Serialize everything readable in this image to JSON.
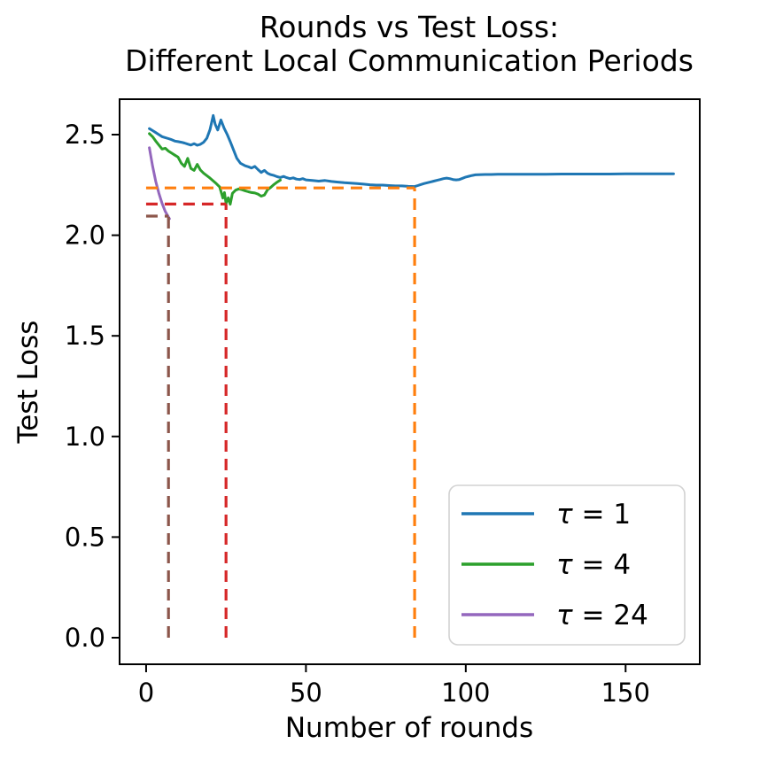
{
  "chart_data": {
    "type": "line",
    "title_lines": [
      "Rounds vs Test Loss:",
      " Different Local Communication Periods"
    ],
    "xlabel": "Number of rounds",
    "ylabel": "Test Loss",
    "xlim": [
      -8.3,
      173.2
    ],
    "ylim": [
      -0.132,
      2.676
    ],
    "xticks": {
      "values": [
        0,
        50,
        100,
        150
      ],
      "labels": [
        "0",
        "50",
        "100",
        "150"
      ]
    },
    "yticks": {
      "values": [
        0.0,
        0.5,
        1.0,
        1.5,
        2.0,
        2.5
      ],
      "labels": [
        "0.0",
        "0.5",
        "1.0",
        "1.5",
        "2.0",
        "2.5"
      ]
    },
    "grid": false,
    "legend_position": "lower right",
    "series": [
      {
        "name": "τ = 1",
        "color": "#1f77b4",
        "style": "solid",
        "points": [
          [
            1,
            2.53
          ],
          [
            2,
            2.52
          ],
          [
            3,
            2.51
          ],
          [
            4,
            2.5
          ],
          [
            5,
            2.49
          ],
          [
            6,
            2.485
          ],
          [
            7,
            2.48
          ],
          [
            8,
            2.475
          ],
          [
            9,
            2.468
          ],
          [
            10,
            2.465
          ],
          [
            11,
            2.462
          ],
          [
            12,
            2.458
          ],
          [
            13,
            2.453
          ],
          [
            14,
            2.448
          ],
          [
            15,
            2.455
          ],
          [
            16,
            2.447
          ],
          [
            17,
            2.452
          ],
          [
            18,
            2.462
          ],
          [
            19,
            2.482
          ],
          [
            20,
            2.525
          ],
          [
            21,
            2.595
          ],
          [
            21.6,
            2.552
          ],
          [
            22.4,
            2.523
          ],
          [
            23.4,
            2.573
          ],
          [
            24.4,
            2.532
          ],
          [
            25.4,
            2.5
          ],
          [
            26.4,
            2.462
          ],
          [
            27.4,
            2.422
          ],
          [
            28.4,
            2.382
          ],
          [
            29.5,
            2.358
          ],
          [
            31,
            2.345
          ],
          [
            32,
            2.34
          ],
          [
            33,
            2.334
          ],
          [
            34,
            2.342
          ],
          [
            35,
            2.326
          ],
          [
            36,
            2.312
          ],
          [
            37,
            2.322
          ],
          [
            38,
            2.308
          ],
          [
            39,
            2.301
          ],
          [
            40,
            2.297
          ],
          [
            41,
            2.291
          ],
          [
            42,
            2.287
          ],
          [
            43,
            2.292
          ],
          [
            44,
            2.286
          ],
          [
            45,
            2.281
          ],
          [
            46,
            2.285
          ],
          [
            47,
            2.279
          ],
          [
            48,
            2.277
          ],
          [
            49,
            2.281
          ],
          [
            50,
            2.275
          ],
          [
            52,
            2.272
          ],
          [
            54,
            2.269
          ],
          [
            56,
            2.272
          ],
          [
            58,
            2.267
          ],
          [
            60,
            2.264
          ],
          [
            62,
            2.261
          ],
          [
            64,
            2.259
          ],
          [
            66,
            2.257
          ],
          [
            68,
            2.254
          ],
          [
            70,
            2.251
          ],
          [
            72,
            2.249
          ],
          [
            74,
            2.249
          ],
          [
            76,
            2.247
          ],
          [
            78,
            2.245
          ],
          [
            80,
            2.245
          ],
          [
            82,
            2.243
          ],
          [
            84,
            2.242
          ],
          [
            85,
            2.247
          ],
          [
            86,
            2.252
          ],
          [
            87,
            2.257
          ],
          [
            88,
            2.261
          ],
          [
            89,
            2.265
          ],
          [
            90,
            2.269
          ],
          [
            91,
            2.273
          ],
          [
            92,
            2.277
          ],
          [
            93,
            2.281
          ],
          [
            94,
            2.284
          ],
          [
            95,
            2.281
          ],
          [
            96,
            2.277
          ],
          [
            97,
            2.275
          ],
          [
            98,
            2.277
          ],
          [
            99,
            2.283
          ],
          [
            100,
            2.289
          ],
          [
            101,
            2.293
          ],
          [
            102,
            2.297
          ],
          [
            103,
            2.3
          ],
          [
            104,
            2.301
          ],
          [
            106,
            2.302
          ],
          [
            108,
            2.302
          ],
          [
            110,
            2.303
          ],
          [
            115,
            2.303
          ],
          [
            120,
            2.303
          ],
          [
            125,
            2.303
          ],
          [
            130,
            2.304
          ],
          [
            135,
            2.304
          ],
          [
            140,
            2.304
          ],
          [
            145,
            2.304
          ],
          [
            150,
            2.305
          ],
          [
            155,
            2.305
          ],
          [
            160,
            2.305
          ],
          [
            165,
            2.305
          ]
        ]
      },
      {
        "name": "τ = 4",
        "color": "#2ca02c",
        "style": "solid",
        "points": [
          [
            1,
            2.505
          ],
          [
            2,
            2.49
          ],
          [
            3,
            2.468
          ],
          [
            4,
            2.448
          ],
          [
            5,
            2.428
          ],
          [
            6,
            2.432
          ],
          [
            7,
            2.418
          ],
          [
            8,
            2.408
          ],
          [
            9,
            2.398
          ],
          [
            10,
            2.388
          ],
          [
            11,
            2.358
          ],
          [
            12,
            2.342
          ],
          [
            13,
            2.382
          ],
          [
            14,
            2.332
          ],
          [
            15,
            2.322
          ],
          [
            16,
            2.352
          ],
          [
            17,
            2.324
          ],
          [
            18,
            2.308
          ],
          [
            19,
            2.296
          ],
          [
            20,
            2.284
          ],
          [
            21,
            2.27
          ],
          [
            22,
            2.256
          ],
          [
            23,
            2.24
          ],
          [
            24,
            2.185
          ],
          [
            24.5,
            2.212
          ],
          [
            25,
            2.158
          ],
          [
            25.7,
            2.186
          ],
          [
            26.3,
            2.154
          ],
          [
            27,
            2.208
          ],
          [
            28,
            2.224
          ],
          [
            29,
            2.23
          ],
          [
            30,
            2.226
          ],
          [
            31,
            2.221
          ],
          [
            32,
            2.216
          ],
          [
            33,
            2.212
          ],
          [
            34,
            2.21
          ],
          [
            35,
            2.204
          ],
          [
            36,
            2.194
          ],
          [
            37,
            2.2
          ],
          [
            38,
            2.226
          ],
          [
            39,
            2.238
          ],
          [
            40,
            2.252
          ],
          [
            41,
            2.264
          ],
          [
            42,
            2.274
          ]
        ]
      },
      {
        "name": "τ = 24",
        "color": "#9467bd",
        "style": "solid",
        "points": [
          [
            1,
            2.435
          ],
          [
            2,
            2.345
          ],
          [
            3,
            2.268
          ],
          [
            4,
            2.208
          ],
          [
            5,
            2.158
          ],
          [
            6,
            2.118
          ],
          [
            7,
            2.09
          ],
          [
            7.3,
            2.082
          ]
        ]
      }
    ],
    "reference_lines": [
      {
        "name": "orange-dashed",
        "color": "#ff7f0e",
        "x": 84,
        "y": 2.235
      },
      {
        "name": "red-dashed",
        "color": "#d62728",
        "x": 25,
        "y": 2.155
      },
      {
        "name": "brown-dashed",
        "color": "#8c564b",
        "x": 7,
        "y": 2.095
      }
    ],
    "legend": {
      "entries": [
        "τ = 1",
        "τ = 4",
        "τ = 24"
      ]
    }
  }
}
